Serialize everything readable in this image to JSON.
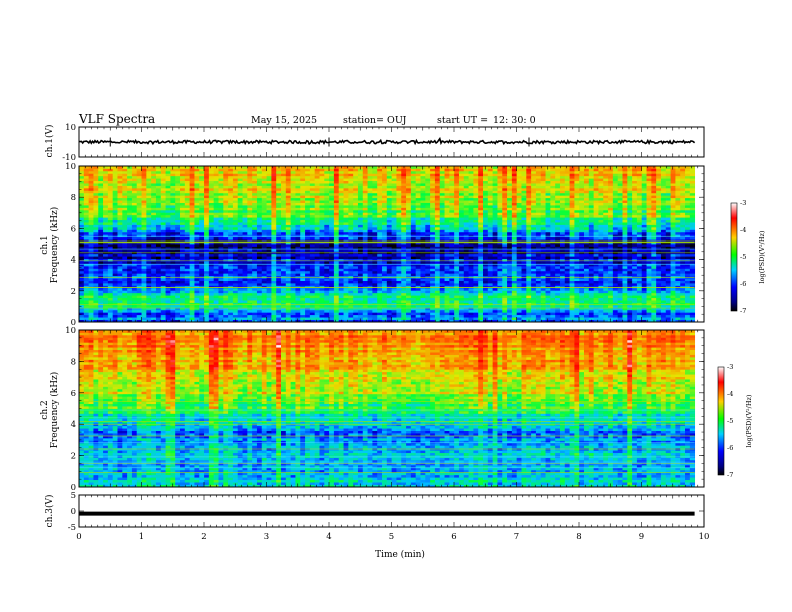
{
  "header": {
    "title": "VLF Spectra",
    "date": "May 15, 2025",
    "station": "station= OUJ",
    "start_label": "start UT =",
    "start_time": "12: 30: 0"
  },
  "colorbar": {
    "ticks": [
      "-3",
      "-4",
      "-5",
      "-6",
      "-7"
    ],
    "label": "log(PSD)(V²/Hz)",
    "colors": [
      "#ffffff",
      "#ff0000",
      "#ffd000",
      "#00ff00",
      "#00d0ff",
      "#0000ff",
      "#000080",
      "#000000"
    ]
  },
  "chart_data": [
    {
      "type": "line",
      "panel": "ch1-waveform",
      "ylabel": "ch.1(V)",
      "ylim": [
        -10,
        10
      ],
      "y_ticks": [
        "10",
        "-10"
      ],
      "xlim": [
        0,
        10
      ],
      "x_unit": "min",
      "approx_level": 0,
      "approx_amplitude": 1.0
    },
    {
      "type": "heatmap",
      "panel": "ch1-spectrogram",
      "ylabel_lines": [
        "ch.1",
        "Frequency (kHz)"
      ],
      "ylim": [
        0,
        10
      ],
      "y_ticks": [
        "0",
        "2",
        "4",
        "6",
        "8",
        "10"
      ],
      "xlim": [
        0,
        10
      ],
      "data_extent_min": 9.85,
      "color_range": [
        -7,
        -3
      ],
      "approx_log_psd_by_freq_khz": [
        {
          "f": 0.5,
          "v": -6.0
        },
        {
          "f": 1.5,
          "v": -5.3
        },
        {
          "f": 2.5,
          "v": -6.2
        },
        {
          "f": 3.5,
          "v": -6.3
        },
        {
          "f": 4.5,
          "v": -6.5
        },
        {
          "f": 5.0,
          "v": -6.8
        },
        {
          "f": 5.5,
          "v": -6.2
        },
        {
          "f": 6.0,
          "v": -5.7
        },
        {
          "f": 7.0,
          "v": -5.1
        },
        {
          "f": 8.0,
          "v": -4.9
        },
        {
          "f": 9.0,
          "v": -4.7
        },
        {
          "f": 9.8,
          "v": -4.6
        }
      ]
    },
    {
      "type": "heatmap",
      "panel": "ch2-spectrogram",
      "ylabel_lines": [
        "ch.2",
        "Frequency (kHz)"
      ],
      "ylim": [
        0,
        10
      ],
      "y_ticks": [
        "0",
        "2",
        "4",
        "6",
        "8",
        "10"
      ],
      "xlim": [
        0,
        10
      ],
      "data_extent_min": 9.85,
      "color_range": [
        -7,
        -3
      ],
      "approx_log_psd_by_freq_khz": [
        {
          "f": 0.5,
          "v": -5.6
        },
        {
          "f": 1.5,
          "v": -5.8
        },
        {
          "f": 2.5,
          "v": -5.9
        },
        {
          "f": 3.5,
          "v": -5.9
        },
        {
          "f": 4.5,
          "v": -5.6
        },
        {
          "f": 5.5,
          "v": -5.0
        },
        {
          "f": 6.5,
          "v": -4.7
        },
        {
          "f": 7.5,
          "v": -4.5
        },
        {
          "f": 8.5,
          "v": -4.3
        },
        {
          "f": 9.5,
          "v": -4.2
        }
      ]
    },
    {
      "type": "line",
      "panel": "ch3-waveform",
      "ylabel": "ch.3(V)",
      "ylim": [
        -5,
        5
      ],
      "y_ticks": [
        "5",
        "0",
        "-5"
      ],
      "xlim": [
        0,
        10
      ],
      "x_ticks": [
        "0",
        "1",
        "2",
        "3",
        "4",
        "5",
        "6",
        "7",
        "8",
        "9",
        "10"
      ],
      "xlabel": "Time (min)",
      "approx_level": -0.8
    }
  ]
}
